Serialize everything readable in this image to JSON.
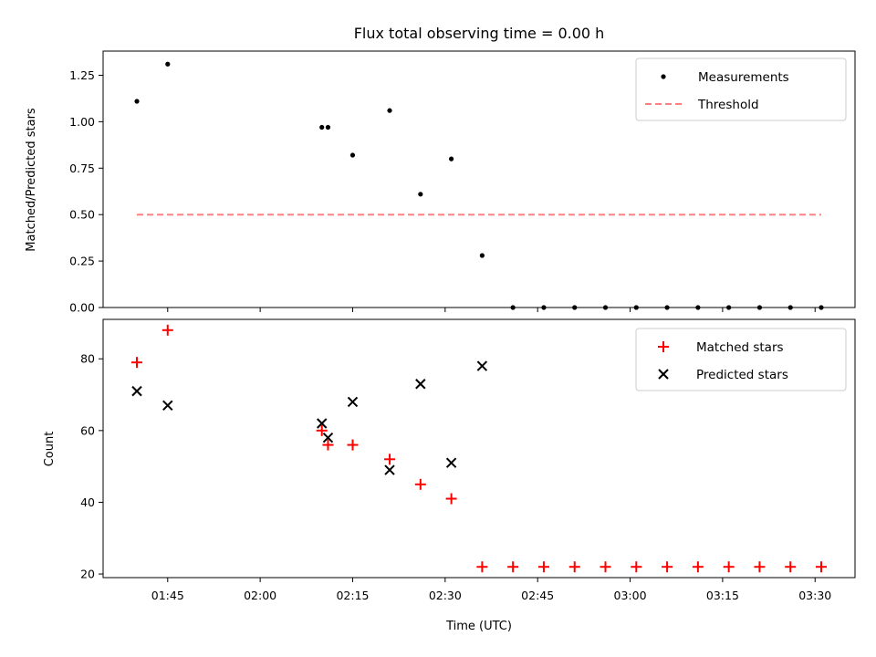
{
  "chart_data": [
    {
      "type": "scatter",
      "title": "Flux total observing time = 0.00 h",
      "ylabel": "Matched/Predicted stars",
      "xlabel": "",
      "ylim": [
        0,
        1.38
      ],
      "yticks": [
        0.0,
        0.25,
        0.5,
        0.75,
        1.0,
        1.25
      ],
      "ytick_labels": [
        "0.00",
        "0.25",
        "0.50",
        "0.75",
        "1.00",
        "1.25"
      ],
      "legend_position": "top-right",
      "grid": false,
      "series": [
        {
          "name": "Measurements",
          "marker": "dot",
          "color": "#000000",
          "x": [
            "01:40",
            "01:45",
            "02:10",
            "02:11",
            "02:15",
            "02:21",
            "02:26",
            "02:31",
            "02:36",
            "02:41",
            "02:46",
            "02:51",
            "02:56",
            "03:01",
            "03:06",
            "03:11",
            "03:16",
            "03:21",
            "03:26",
            "03:31"
          ],
          "y": [
            1.11,
            1.31,
            0.97,
            0.97,
            0.82,
            1.06,
            0.61,
            0.8,
            0.28,
            0,
            0,
            0,
            0,
            0,
            0,
            0,
            0,
            0,
            0,
            0
          ]
        },
        {
          "name": "Threshold",
          "marker": "dashed-line",
          "color": "#ff8080",
          "x": [
            "01:40",
            "03:31"
          ],
          "y": [
            0.5,
            0.5
          ]
        }
      ]
    },
    {
      "type": "scatter",
      "title": "",
      "ylabel": "Count",
      "xlabel": "Time (UTC)",
      "ylim": [
        19,
        91
      ],
      "yticks": [
        20,
        40,
        60,
        80
      ],
      "ytick_labels": [
        "20",
        "40",
        "60",
        "80"
      ],
      "xtick_labels": [
        "01:45",
        "02:00",
        "02:15",
        "02:30",
        "02:45",
        "03:00",
        "03:15",
        "03:30"
      ],
      "legend_position": "top-right",
      "grid": false,
      "series": [
        {
          "name": "Matched stars",
          "marker": "plus",
          "color": "#ff0000",
          "x": [
            "01:40",
            "01:45",
            "02:10",
            "02:11",
            "02:15",
            "02:21",
            "02:26",
            "02:31",
            "02:36",
            "02:41",
            "02:46",
            "02:51",
            "02:56",
            "03:01",
            "03:06",
            "03:11",
            "03:16",
            "03:21",
            "03:26",
            "03:31"
          ],
          "y": [
            79,
            88,
            60,
            56,
            56,
            52,
            45,
            41,
            22,
            22,
            22,
            22,
            22,
            22,
            22,
            22,
            22,
            22,
            22,
            22
          ]
        },
        {
          "name": "Predicted stars",
          "marker": "x",
          "color": "#000000",
          "x": [
            "01:40",
            "01:45",
            "02:10",
            "02:11",
            "02:15",
            "02:21",
            "02:26",
            "02:31",
            "02:36"
          ],
          "y": [
            71,
            67,
            62,
            58,
            68,
            49,
            73,
            51,
            78
          ]
        }
      ]
    }
  ]
}
